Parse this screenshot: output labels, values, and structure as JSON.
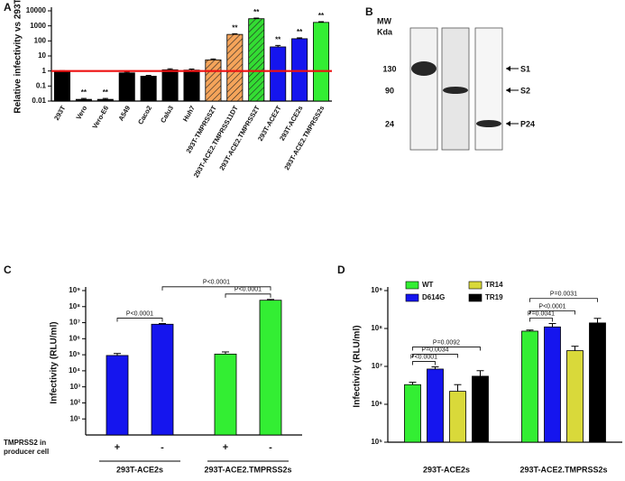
{
  "chart_data": [
    {
      "type": "bar_log",
      "panel": "A",
      "ylabel": "Relative infectivity vs 293T",
      "categories": [
        "293T",
        "Vero",
        "Vero-E6",
        "A549",
        "Caco2",
        "Calu3",
        "Huh7",
        "293T-TMPRSS2T",
        "293T-ACE2.TMPRSS11DT",
        "293T-ACE2.TMPRSS2T",
        "293T-ACE2T",
        "293T-ACE2s",
        "293T-ACE2.TMPRSS2s"
      ],
      "values": [
        1,
        0.013,
        0.013,
        0.75,
        0.45,
        1.2,
        1.15,
        5.5,
        270,
        3000,
        40,
        140,
        1700
      ],
      "errors": [
        0.05,
        0.002,
        0.002,
        0.1,
        0.06,
        0.2,
        0.2,
        0.8,
        30,
        300,
        10,
        20,
        200
      ],
      "colors": [
        "#000000",
        "#000000",
        "#000000",
        "#000000",
        "#000000",
        "#000000",
        "#000000",
        "#f5a45a",
        "#f5a45a",
        "#33dd33",
        "#1515ee",
        "#1515ee",
        "#33ee33"
      ],
      "hatch": [
        false,
        false,
        false,
        false,
        false,
        false,
        false,
        true,
        true,
        true,
        false,
        false,
        false
      ],
      "significance": [
        null,
        "**",
        "**",
        null,
        null,
        null,
        null,
        null,
        "**",
        "**",
        "**",
        "**",
        "**"
      ],
      "reference_line": {
        "value": 1,
        "color": "#ee1111"
      },
      "ylim": [
        0.01,
        10000
      ],
      "yticks": [
        0.01,
        0.1,
        1,
        10,
        100,
        1000,
        10000
      ]
    },
    {
      "type": "blot",
      "panel": "B",
      "mw": "MW",
      "unit": "Kda",
      "lanes": [
        {
          "marker": "130",
          "band": "S1"
        },
        {
          "marker": "90",
          "band": "S2"
        },
        {
          "marker": "24",
          "band": "P24"
        }
      ]
    },
    {
      "type": "grouped_log",
      "panel": "C",
      "ylabel": "Infectivity (RLU/ml)",
      "row_label": "TMPRSS2 in producer cell",
      "categories": [
        "293T-ACE2s",
        "293T-ACE2.TMPRSS2s"
      ],
      "category_colors": [
        "#1515ee",
        "#33ee33"
      ],
      "series": [
        {
          "name": "+",
          "values": [
            90000,
            110000
          ],
          "errors": [
            30000,
            40000
          ]
        },
        {
          "name": "-",
          "values": [
            8000000,
            250000000
          ],
          "errors": [
            800000,
            30000000
          ]
        }
      ],
      "comparisons": [
        {
          "from": [
            0,
            0
          ],
          "to": [
            0,
            1
          ],
          "label": "P<0.0001"
        },
        {
          "from": [
            1,
            0
          ],
          "to": [
            1,
            1
          ],
          "label": "P<0.0001"
        },
        {
          "from": [
            0,
            1
          ],
          "to": [
            1,
            1
          ],
          "label": "P<0.0001"
        }
      ],
      "ylim": [
        1,
        1000000000
      ],
      "yticks": [
        {
          "value": 10,
          "label": "10¹"
        },
        {
          "value": 100,
          "label": "10²"
        },
        {
          "value": 1000,
          "label": "10³"
        },
        {
          "value": 10000,
          "label": "10⁴"
        },
        {
          "value": 100000,
          "label": "10⁵"
        },
        {
          "value": 1000000,
          "label": "10⁶"
        },
        {
          "value": 10000000,
          "label": "10⁷"
        },
        {
          "value": 100000000,
          "label": "10⁸"
        },
        {
          "value": 1000000000,
          "label": "10⁹"
        }
      ]
    },
    {
      "type": "grouped_log",
      "panel": "D",
      "ylabel": "Infectivity (RLU/ml)",
      "categories": [
        "293T-ACE2s",
        "293T-ACE2.TMPRSS2s"
      ],
      "series": [
        {
          "name": "WT",
          "color": "#33ee33",
          "values": [
            3300000,
            85000000
          ],
          "errors": [
            500000,
            6000000
          ]
        },
        {
          "name": "D614G",
          "color": "#1515ee",
          "values": [
            8500000,
            110000000
          ],
          "errors": [
            1200000,
            25000000
          ]
        },
        {
          "name": "TR14",
          "color": "#d9d93a",
          "values": [
            2200000,
            26000000
          ],
          "errors": [
            1100000,
            8000000
          ]
        },
        {
          "name": "TR19",
          "color": "#000000",
          "values": [
            5500000,
            140000000
          ],
          "errors": [
            2200000,
            45000000
          ]
        }
      ],
      "comparisons": [
        {
          "from": [
            0,
            0
          ],
          "to": [
            0,
            1
          ],
          "label": "P<0.0001"
        },
        {
          "from": [
            0,
            0
          ],
          "to": [
            0,
            2
          ],
          "label": "P=0.0034"
        },
        {
          "from": [
            0,
            0
          ],
          "to": [
            0,
            3
          ],
          "label": "P=0.0092"
        },
        {
          "from": [
            1,
            0
          ],
          "to": [
            1,
            1
          ],
          "label": "P=0.0041"
        },
        {
          "from": [
            1,
            0
          ],
          "to": [
            1,
            2
          ],
          "label": "P<0.0001"
        },
        {
          "from": [
            1,
            0
          ],
          "to": [
            1,
            3
          ],
          "label": "P=0.0031"
        }
      ],
      "ylim": [
        100000,
        1000000000
      ],
      "yticks": [
        {
          "value": 100000,
          "label": "10⁵"
        },
        {
          "value": 1000000,
          "label": "10⁶"
        },
        {
          "value": 10000000,
          "label": "10⁷"
        },
        {
          "value": 100000000,
          "label": "10⁸"
        },
        {
          "value": 1000000000,
          "label": "10⁹"
        }
      ]
    }
  ]
}
